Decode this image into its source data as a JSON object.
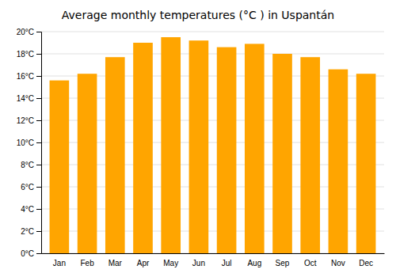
{
  "chart_data": {
    "type": "bar",
    "title": "Average monthly temperatures (°C ) in Uspantán",
    "categories": [
      "Jan",
      "Feb",
      "Mar",
      "Apr",
      "May",
      "Jun",
      "Jul",
      "Aug",
      "Sep",
      "Oct",
      "Nov",
      "Dec"
    ],
    "values": [
      15.6,
      16.2,
      17.7,
      19.0,
      19.5,
      19.2,
      18.6,
      18.9,
      18.0,
      17.7,
      16.6,
      16.2
    ],
    "color": "#FFA500",
    "ylim": [
      0,
      20
    ],
    "yticks": [
      {
        "value": 0,
        "label": "0°C"
      },
      {
        "value": 2,
        "label": "2°C"
      },
      {
        "value": 4,
        "label": "4°C"
      },
      {
        "value": 6,
        "label": "6°C"
      },
      {
        "value": 8,
        "label": "8°C"
      },
      {
        "value": 10,
        "label": "10°C"
      },
      {
        "value": 12,
        "label": "12°C"
      },
      {
        "value": 14,
        "label": "14°C"
      },
      {
        "value": 16,
        "label": "16°C"
      },
      {
        "value": 18,
        "label": "18°C"
      },
      {
        "value": 20,
        "label": "20°C"
      }
    ],
    "grid": true
  }
}
